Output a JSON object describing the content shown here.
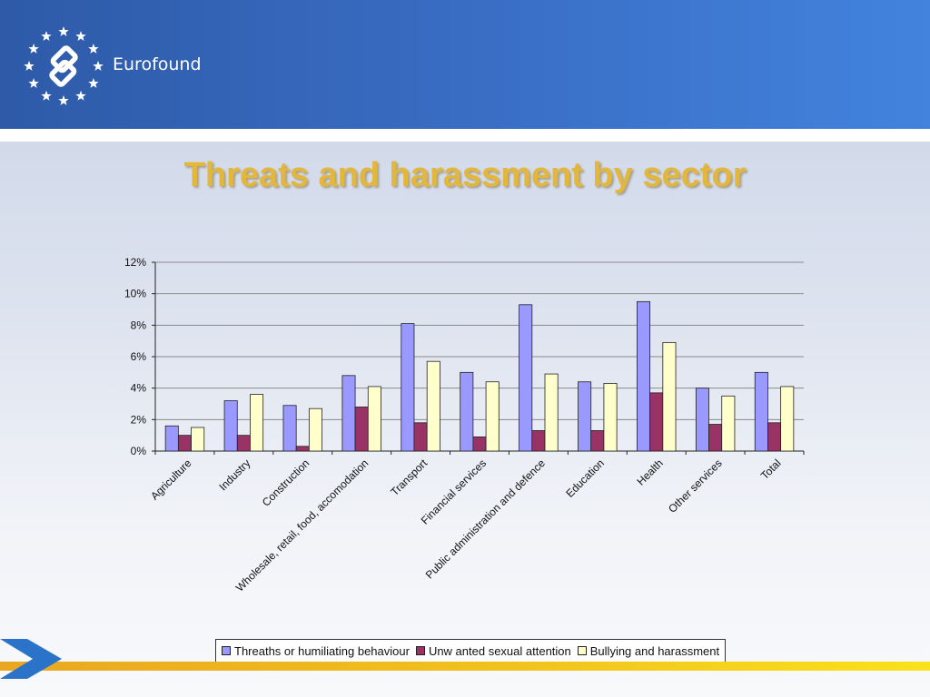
{
  "brand": {
    "name": "Eurofound"
  },
  "chart_data": {
    "type": "bar",
    "title": "Threats and harassment by sector",
    "categories": [
      "Agriculture",
      "Industry",
      "Construction",
      "Wholesale, retail, food, accomodation",
      "Transport",
      "Financial services",
      "Public administration and defence",
      "Education",
      "Health",
      "Other services",
      "Total"
    ],
    "series": [
      {
        "name": "Threaths or humiliating behaviour",
        "color": "#9999ff",
        "values": [
          1.6,
          3.2,
          2.9,
          4.8,
          8.1,
          5.0,
          9.3,
          4.4,
          9.5,
          4.0,
          5.0
        ]
      },
      {
        "name": "Unw anted sexual attention",
        "color": "#993366",
        "values": [
          1.0,
          1.0,
          0.3,
          2.8,
          1.8,
          0.9,
          1.3,
          1.3,
          3.7,
          1.7,
          1.8
        ]
      },
      {
        "name": "Bullying and harassment",
        "color": "#ffffcc",
        "values": [
          1.5,
          3.6,
          2.7,
          4.1,
          5.7,
          4.4,
          4.9,
          4.3,
          6.9,
          3.5,
          4.1
        ]
      }
    ],
    "yticks": [
      "0%",
      "2%",
      "4%",
      "6%",
      "8%",
      "10%",
      "12%"
    ],
    "ylim": [
      0,
      12
    ],
    "grid": true,
    "legend_position": "bottom"
  }
}
